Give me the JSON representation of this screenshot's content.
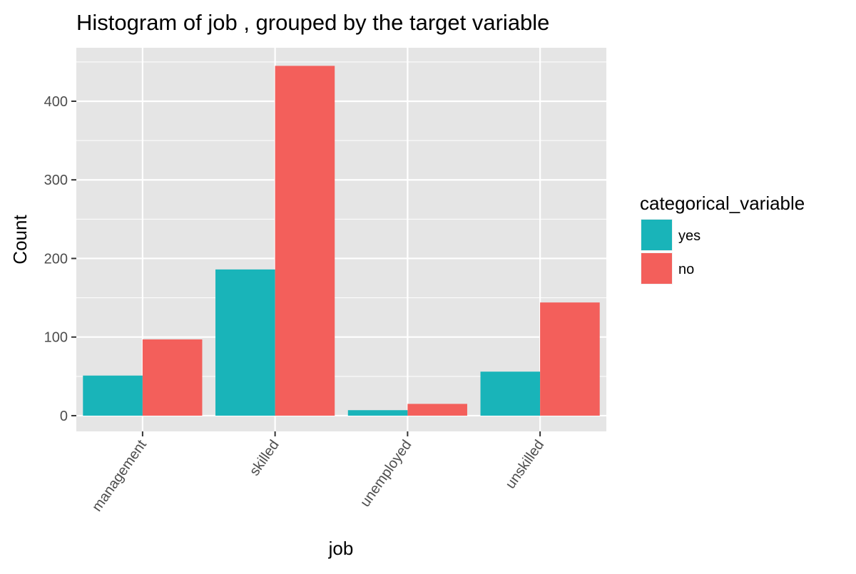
{
  "chart_data": {
    "type": "bar",
    "title": "Histogram of job , grouped by the target variable",
    "xlabel": "job",
    "ylabel": "Count",
    "categories": [
      "management",
      "skilled",
      "unemployed",
      "unskilled"
    ],
    "series": [
      {
        "name": "yes",
        "values": [
          51,
          186,
          7,
          56
        ],
        "color": "#19b4b9"
      },
      {
        "name": "no",
        "values": [
          97,
          445,
          15,
          144
        ],
        "color": "#f35f5b"
      }
    ],
    "yticks": [
      0,
      100,
      200,
      300,
      400
    ],
    "ylim": [
      -20,
      468
    ],
    "grid": true,
    "legend": {
      "title": "categorical_variable",
      "position": "right"
    },
    "colors": {
      "panel": "#e5e5e5",
      "grid": "#ffffff",
      "tick_text": "#4d4d4d"
    }
  }
}
